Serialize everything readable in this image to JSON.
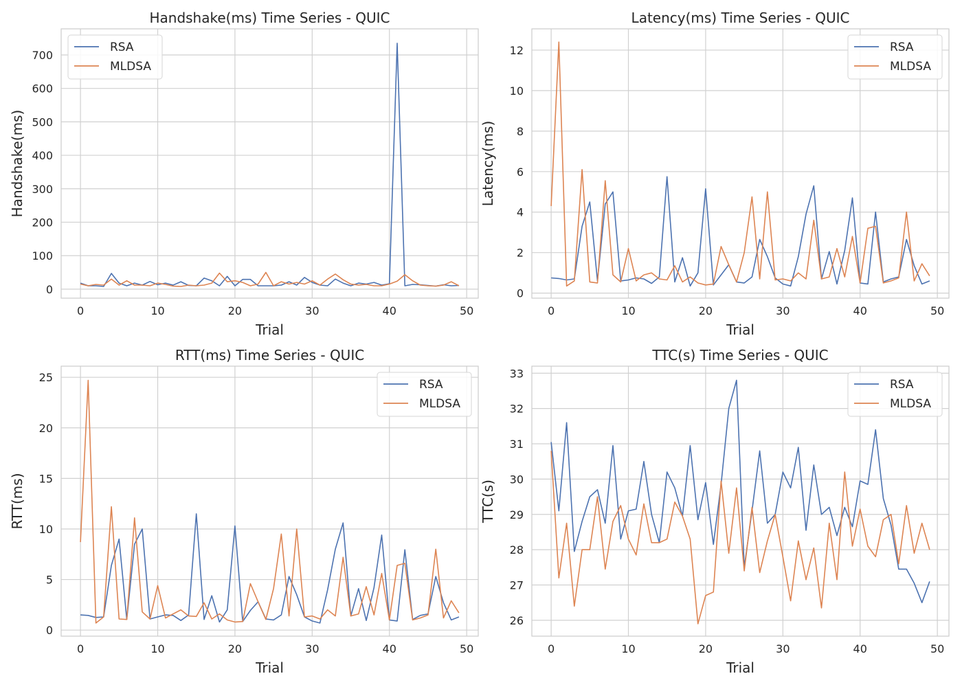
{
  "colors": {
    "rsa": "#4c72b0",
    "mldsa": "#dd8452"
  },
  "chart_data": [
    {
      "type": "line",
      "title": "Handshake(ms) Time Series - QUIC",
      "xlabel": "Trial",
      "ylabel": "Handshake(ms)",
      "xlim": [
        -2.5,
        51.5
      ],
      "ylim": [
        -27,
        778
      ],
      "x_ticks": [
        0,
        10,
        20,
        30,
        40,
        50
      ],
      "y_ticks": [
        0,
        100,
        200,
        300,
        400,
        500,
        600,
        700
      ],
      "legend_position": "upper-left",
      "series": [
        {
          "name": "RSA",
          "color": "#4c72b0",
          "values": [
            18,
            10,
            10,
            8,
            47,
            18,
            10,
            18,
            12,
            23,
            13,
            18,
            12,
            22,
            11,
            10,
            33,
            25,
            10,
            38,
            10,
            29,
            29,
            10,
            10,
            10,
            12,
            22,
            12,
            35,
            20,
            12,
            10,
            30,
            18,
            10,
            18,
            15,
            20,
            12,
            16,
            735,
            10,
            14,
            13,
            11,
            9,
            13,
            10,
            11
          ]
        },
        {
          "name": "MLDSA",
          "color": "#dd8452",
          "values": [
            15,
            10,
            14,
            12,
            30,
            12,
            25,
            12,
            12,
            10,
            18,
            14,
            9,
            8,
            12,
            10,
            12,
            18,
            48,
            22,
            25,
            20,
            10,
            15,
            50,
            10,
            22,
            15,
            20,
            15,
            25,
            12,
            30,
            45,
            28,
            15,
            12,
            14,
            10,
            10,
            15,
            24,
            43,
            25,
            12,
            10,
            9,
            12,
            22,
            10
          ]
        }
      ]
    },
    {
      "type": "line",
      "title": "Latency(ms) Time Series - QUIC",
      "xlabel": "Trial",
      "ylabel": "Latency(ms)",
      "xlim": [
        -2.5,
        51.5
      ],
      "ylim": [
        -0.25,
        13.05
      ],
      "x_ticks": [
        0,
        10,
        20,
        30,
        40,
        50
      ],
      "y_ticks": [
        0,
        2,
        4,
        6,
        8,
        10,
        12
      ],
      "legend_position": "upper-right",
      "series": [
        {
          "name": "RSA",
          "color": "#4c72b0",
          "values": [
            0.75,
            0.72,
            0.65,
            0.7,
            3.3,
            4.5,
            0.6,
            4.4,
            5.0,
            0.6,
            0.65,
            0.75,
            0.7,
            0.48,
            0.8,
            5.75,
            0.55,
            1.75,
            0.35,
            1.0,
            5.15,
            0.4,
            0.9,
            1.4,
            0.55,
            0.5,
            0.8,
            2.65,
            1.8,
            0.75,
            0.45,
            0.35,
            1.8,
            3.9,
            5.3,
            0.7,
            2.05,
            0.45,
            2.1,
            4.7,
            0.5,
            0.45,
            4.0,
            0.55,
            0.7,
            0.8,
            2.65,
            1.35,
            0.45,
            0.6
          ]
        },
        {
          "name": "MLDSA",
          "color": "#dd8452",
          "values": [
            4.3,
            12.4,
            0.35,
            0.6,
            6.1,
            0.55,
            0.5,
            5.55,
            0.9,
            0.55,
            2.2,
            0.6,
            0.9,
            1.0,
            0.7,
            0.65,
            1.35,
            0.55,
            0.8,
            0.5,
            0.4,
            0.45,
            2.3,
            1.4,
            0.55,
            2.0,
            4.75,
            0.7,
            5.0,
            0.65,
            0.7,
            0.6,
            1.0,
            0.7,
            3.6,
            0.7,
            0.8,
            2.2,
            0.8,
            2.8,
            0.5,
            3.2,
            3.3,
            0.5,
            0.6,
            0.75,
            4.0,
            0.6,
            1.45,
            0.85
          ]
        }
      ]
    },
    {
      "type": "line",
      "title": "RTT(ms) Time Series - QUIC",
      "xlabel": "Trial",
      "ylabel": "RTT(ms)",
      "xlim": [
        -2.5,
        51.5
      ],
      "ylim": [
        -0.6,
        26.1
      ],
      "x_ticks": [
        0,
        10,
        20,
        30,
        40,
        50
      ],
      "y_ticks": [
        0,
        5,
        10,
        15,
        20,
        25
      ],
      "legend_position": "upper-right",
      "series": [
        {
          "name": "RSA",
          "color": "#4c72b0",
          "values": [
            1.5,
            1.45,
            1.25,
            1.3,
            6.4,
            9.0,
            1.05,
            8.5,
            10.0,
            1.1,
            1.3,
            1.5,
            1.45,
            0.95,
            1.5,
            11.5,
            1.05,
            3.4,
            0.8,
            2.0,
            10.3,
            0.85,
            1.95,
            2.8,
            1.1,
            1.0,
            1.5,
            5.3,
            3.5,
            1.3,
            0.9,
            0.7,
            4.0,
            8.0,
            10.6,
            1.4,
            4.1,
            0.95,
            4.2,
            9.4,
            1.0,
            0.9,
            7.95,
            1.05,
            1.45,
            1.6,
            5.3,
            2.7,
            1.0,
            1.3
          ]
        },
        {
          "name": "MLDSA",
          "color": "#dd8452",
          "values": [
            8.7,
            24.7,
            0.7,
            1.3,
            12.2,
            1.1,
            1.05,
            11.1,
            1.8,
            1.1,
            4.4,
            1.2,
            1.6,
            2.0,
            1.4,
            1.35,
            2.7,
            1.1,
            1.6,
            1.0,
            0.8,
            0.85,
            4.6,
            2.8,
            1.05,
            4.1,
            9.5,
            1.4,
            10.0,
            1.3,
            1.4,
            1.1,
            2.0,
            1.4,
            7.2,
            1.4,
            1.6,
            4.3,
            1.5,
            5.6,
            1.0,
            6.4,
            6.6,
            1.0,
            1.2,
            1.5,
            8.0,
            1.2,
            2.9,
            1.7
          ]
        }
      ]
    },
    {
      "type": "line",
      "title": "TTC(s) Time Series - QUIC",
      "xlabel": "Trial",
      "ylabel": "TTC(s)",
      "xlim": [
        -2.5,
        51.5
      ],
      "ylim": [
        25.55,
        33.2
      ],
      "x_ticks": [
        0,
        10,
        20,
        30,
        40,
        50
      ],
      "y_ticks": [
        26,
        27,
        28,
        29,
        30,
        31,
        32,
        33
      ],
      "legend_position": "upper-right",
      "series": [
        {
          "name": "RSA",
          "color": "#4c72b0",
          "values": [
            31.05,
            29.1,
            31.6,
            27.95,
            28.8,
            29.5,
            29.7,
            28.75,
            30.95,
            28.3,
            29.1,
            29.15,
            30.5,
            29.0,
            28.2,
            30.2,
            29.75,
            28.95,
            30.95,
            28.85,
            29.9,
            28.15,
            29.85,
            32.0,
            32.8,
            27.5,
            29.1,
            30.8,
            28.75,
            29.0,
            30.2,
            29.75,
            30.9,
            28.55,
            30.4,
            29.0,
            29.2,
            28.4,
            29.2,
            28.65,
            29.95,
            29.85,
            31.4,
            29.45,
            28.7,
            27.45,
            27.45,
            27.05,
            26.5,
            27.1
          ]
        },
        {
          "name": "MLDSA",
          "color": "#dd8452",
          "values": [
            30.8,
            27.2,
            28.75,
            26.4,
            28.0,
            28.0,
            29.5,
            27.45,
            28.8,
            29.25,
            28.3,
            27.85,
            29.3,
            28.2,
            28.2,
            28.3,
            29.35,
            28.95,
            28.3,
            25.9,
            26.7,
            26.8,
            29.95,
            27.9,
            29.75,
            27.4,
            29.2,
            27.35,
            28.25,
            29.0,
            27.8,
            26.55,
            28.25,
            27.15,
            28.05,
            26.35,
            28.75,
            27.15,
            30.2,
            28.1,
            29.15,
            28.1,
            27.8,
            28.85,
            29.0,
            27.6,
            29.25,
            27.9,
            28.75,
            28.0
          ]
        }
      ]
    }
  ]
}
